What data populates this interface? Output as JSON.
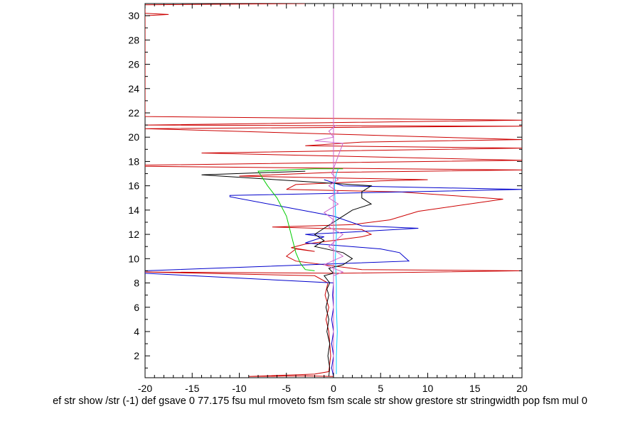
{
  "chart_data": {
    "type": "line",
    "title": "",
    "xlabel": "ef str show /str (-1) def gsave 0 77.175 fsu mul rmoveto fsm fsm scale str show grestore str stringwidth pop fsm mul 0",
    "ylabel": "",
    "xlim": [
      -20,
      20
    ],
    "ylim": [
      0.2,
      31
    ],
    "x_ticks": [
      "-20",
      "-15",
      "-10",
      "-5",
      "0",
      "5",
      "10",
      "15",
      "20"
    ],
    "y_ticks": [
      "2",
      "4",
      "6",
      "8",
      "10",
      "12",
      "14",
      "16",
      "18",
      "20",
      "22",
      "24",
      "26",
      "28",
      "30"
    ],
    "grid": false,
    "legend": "none",
    "series": [
      {
        "color": "#cc0000",
        "points": [
          [
            0,
            0.3
          ],
          [
            -3,
            0.35
          ],
          [
            -9,
            0.3
          ],
          [
            -2,
            0.5
          ],
          [
            -0.5,
            0.7
          ],
          [
            -0.3,
            2
          ],
          [
            -0.5,
            4
          ],
          [
            -0.8,
            5
          ],
          [
            -0.5,
            6
          ],
          [
            -0.9,
            7
          ],
          [
            -0.6,
            8
          ],
          [
            -2,
            8.6
          ],
          [
            -20,
            8.9
          ],
          [
            0.5,
            8.8
          ],
          [
            20,
            9
          ],
          [
            3,
            9.1
          ],
          [
            -4,
            9.8
          ],
          [
            -5,
            10.2
          ],
          [
            -4,
            10.8
          ],
          [
            -2,
            10.6
          ],
          [
            -4.5,
            10.9
          ],
          [
            -3,
            11.2
          ],
          [
            3,
            11.8
          ],
          [
            4,
            12
          ],
          [
            3,
            12.4
          ],
          [
            -6.5,
            12.6
          ],
          [
            2,
            12.8
          ],
          [
            6,
            13.2
          ],
          [
            9,
            13.9
          ],
          [
            18,
            14.9
          ],
          [
            7,
            15.5
          ],
          [
            -5,
            15.7
          ],
          [
            -4,
            16.1
          ],
          [
            5,
            16.4
          ],
          [
            10,
            16.5
          ],
          [
            -10,
            16.8
          ],
          [
            0,
            17.1
          ],
          [
            20,
            17.3
          ],
          [
            -20,
            17.6
          ],
          [
            -20,
            17.7
          ],
          [
            20,
            18.1
          ],
          [
            -14,
            18.7
          ],
          [
            20,
            19.1
          ],
          [
            -3,
            19.3
          ],
          [
            3,
            19.6
          ],
          [
            20,
            19.8
          ],
          [
            -20,
            20.7
          ],
          [
            20,
            20.9
          ],
          [
            -20,
            21
          ],
          [
            20,
            21.4
          ],
          [
            -20,
            21.7
          ],
          [
            -20,
            30
          ],
          [
            -17.5,
            30.1
          ],
          [
            -20,
            30.2
          ],
          [
            -20,
            30.9
          ],
          [
            -3,
            31
          ]
        ]
      },
      {
        "color": "#0000cc",
        "points": [
          [
            0,
            0.3
          ],
          [
            -0.2,
            1
          ],
          [
            0,
            2
          ],
          [
            -0.2,
            3
          ],
          [
            0,
            4
          ],
          [
            -0.2,
            5
          ],
          [
            0,
            6
          ],
          [
            -0.1,
            7
          ],
          [
            0,
            8
          ],
          [
            -20,
            8.8
          ],
          [
            -20,
            9
          ],
          [
            8,
            9.8
          ],
          [
            7,
            10.5
          ],
          [
            5,
            10.8
          ],
          [
            -3,
            11.3
          ],
          [
            -1,
            11.8
          ],
          [
            -3,
            12
          ],
          [
            2,
            12.2
          ],
          [
            9,
            12.5
          ],
          [
            3,
            12.7
          ],
          [
            0,
            13.5
          ],
          [
            -11,
            15.1
          ],
          [
            -11,
            15.2
          ],
          [
            20,
            15.7
          ],
          [
            1,
            16
          ],
          [
            -1,
            16.5
          ]
        ]
      },
      {
        "color": "#000000",
        "points": [
          [
            -0.5,
            0.3
          ],
          [
            -0.4,
            1
          ],
          [
            -0.6,
            2
          ],
          [
            -0.4,
            3
          ],
          [
            -0.7,
            4
          ],
          [
            -0.5,
            5
          ],
          [
            -0.8,
            6
          ],
          [
            -0.5,
            7
          ],
          [
            -0.7,
            7.5
          ],
          [
            -0.4,
            8
          ],
          [
            -1,
            8.6
          ],
          [
            0,
            8.8
          ],
          [
            -0.5,
            9.2
          ],
          [
            1,
            9.5
          ],
          [
            2,
            10
          ],
          [
            1,
            10.5
          ],
          [
            -2,
            11
          ],
          [
            -1,
            11.5
          ],
          [
            -2,
            12
          ],
          [
            -1,
            12.5
          ],
          [
            0,
            13
          ],
          [
            1,
            13.5
          ],
          [
            2,
            14
          ],
          [
            4,
            14.5
          ],
          [
            3,
            15
          ],
          [
            3,
            15.5
          ],
          [
            4,
            16
          ],
          [
            -14,
            16.9
          ],
          [
            -3,
            17.2
          ]
        ]
      },
      {
        "color": "#00cc00",
        "points": [
          [
            -2,
            9.0
          ],
          [
            -3,
            9.1
          ],
          [
            -3.5,
            9.6
          ],
          [
            -4,
            10.5
          ],
          [
            -4.5,
            12
          ],
          [
            -5,
            13.5
          ],
          [
            -6,
            15
          ],
          [
            -7,
            16
          ],
          [
            -8,
            17.2
          ],
          [
            -2,
            17.4
          ],
          [
            1,
            17.4
          ]
        ]
      },
      {
        "color": "#00ccff",
        "points": [
          [
            0.3,
            0.5
          ],
          [
            0.3,
            2
          ],
          [
            0.4,
            4
          ],
          [
            0.3,
            6
          ],
          [
            0.3,
            8
          ],
          [
            0.2,
            10
          ],
          [
            0.3,
            12
          ],
          [
            0.2,
            14
          ],
          [
            0.1,
            16
          ],
          [
            0.3,
            17
          ],
          [
            0.5,
            17.4
          ]
        ]
      },
      {
        "color": "#cc66cc",
        "points": [
          [
            0,
            0.2
          ],
          [
            0,
            31
          ]
        ]
      },
      {
        "color": "#cc66cc",
        "points": [
          [
            0,
            8.6
          ],
          [
            1,
            8.9
          ],
          [
            -1,
            9.5
          ],
          [
            1,
            10.2
          ],
          [
            -0.5,
            11
          ],
          [
            1,
            12
          ],
          [
            -0.5,
            12.6
          ],
          [
            0,
            13.2
          ],
          [
            -1,
            13.8
          ],
          [
            0.5,
            14.5
          ],
          [
            -0.5,
            15
          ],
          [
            0.5,
            15.5
          ],
          [
            -0.5,
            16
          ],
          [
            0.5,
            16.5
          ],
          [
            -0.2,
            17
          ],
          [
            1,
            19.5
          ],
          [
            -2,
            19.7
          ],
          [
            0,
            20
          ],
          [
            -0.5,
            20.5
          ],
          [
            0.3,
            21
          ]
        ]
      }
    ]
  }
}
